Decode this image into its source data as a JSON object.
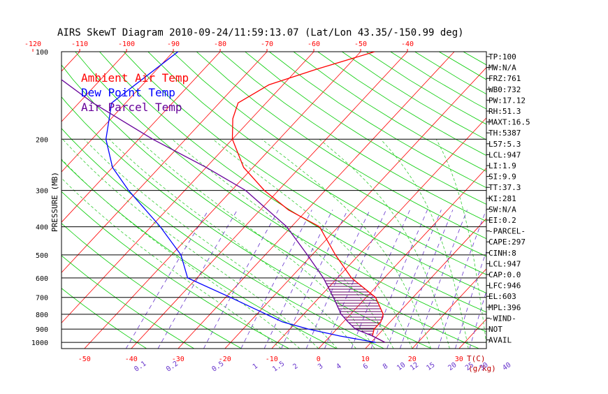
{
  "chart_data": {
    "type": "line",
    "title": "AIRS SkewT Diagram 2010-09-24/11:59:13.07 (Lat/Lon 43.35/-150.99 deg)",
    "ylabel": "PRESSURE (MB)",
    "pressure_ticks": [
      "100",
      "200",
      "300",
      "400",
      "500",
      "600",
      "700",
      "800",
      "900",
      "1000"
    ],
    "top_temp_ticks": [
      "-120",
      "-110",
      "-100",
      "-90",
      "-80",
      "-70",
      "-60",
      "-50",
      "-40"
    ],
    "bottom_temp_ticks": [
      "-50",
      "-40",
      "-30",
      "-20",
      "-10",
      "0",
      "10",
      "20",
      "30"
    ],
    "bottom_temp_unit": "T(C)",
    "mixing_ratio_ticks": [
      "0.1",
      "0.2",
      "0.5",
      "1",
      "1.5",
      "2",
      "3",
      "4",
      "6",
      "8",
      "10",
      "12",
      "15",
      "20",
      "25",
      "30",
      "40"
    ],
    "mixing_ratio_unit": "(g/kg)",
    "legend": [
      {
        "name": "Ambient Air Temp",
        "color": "#ff0000"
      },
      {
        "name": "Dew Point Temp",
        "color": "#0000ff"
      },
      {
        "name": "Air Parcel Temp",
        "color": "#660099"
      }
    ],
    "series": [
      {
        "name": "Ambient Air Temp",
        "color": "#ff0000",
        "points": [
          [
            1000,
            13
          ],
          [
            950,
            9
          ],
          [
            900,
            8
          ],
          [
            850,
            8
          ],
          [
            800,
            7
          ],
          [
            700,
            2
          ],
          [
            600,
            -7
          ],
          [
            500,
            -15
          ],
          [
            400,
            -24
          ],
          [
            350,
            -34
          ],
          [
            300,
            -43
          ],
          [
            250,
            -52
          ],
          [
            200,
            -60
          ],
          [
            170,
            -64
          ],
          [
            150,
            -66
          ],
          [
            130,
            -63
          ],
          [
            115,
            -56
          ],
          [
            100,
            -47
          ]
        ]
      },
      {
        "name": "Dew Point Temp",
        "color": "#0000ff",
        "points": [
          [
            1000,
            11
          ],
          [
            950,
            2
          ],
          [
            900,
            -6
          ],
          [
            850,
            -13
          ],
          [
            800,
            -18
          ],
          [
            700,
            -29
          ],
          [
            600,
            -42
          ],
          [
            500,
            -48
          ],
          [
            400,
            -58
          ],
          [
            300,
            -72
          ],
          [
            250,
            -80
          ],
          [
            200,
            -87
          ],
          [
            150,
            -93
          ],
          [
            100,
            -89
          ]
        ]
      },
      {
        "name": "Air Parcel Temp",
        "color": "#660099",
        "points": [
          [
            1000,
            13
          ],
          [
            950,
            9
          ],
          [
            900,
            4
          ],
          [
            850,
            1
          ],
          [
            800,
            -2
          ],
          [
            700,
            -7
          ],
          [
            600,
            -13
          ],
          [
            500,
            -21
          ],
          [
            400,
            -31
          ],
          [
            300,
            -47
          ],
          [
            250,
            -60
          ],
          [
            200,
            -77
          ],
          [
            150,
            -97
          ],
          [
            100,
            -122
          ]
        ]
      }
    ],
    "grid": true,
    "legend_position": "top-left",
    "indices": [
      "TP:100",
      "MW:N/A",
      "FRZ:761",
      "WB0:732",
      "PW:17.12",
      "RH:51.3",
      "MAXT:16.5",
      "TH:5387",
      "L57:5.3",
      "LCL:947",
      "LI:1.9",
      "SI:9.9",
      "TT:37.3",
      "KI:281",
      "SW:N/A",
      "EI:0.2",
      "-PARCEL-",
      "CAPE:297",
      "CINH:8",
      "LCL:947",
      "CAP:0.0",
      "LFC:946",
      "EL:603",
      "MPL:396",
      "-WIND-",
      "NOT",
      "AVAIL"
    ]
  }
}
